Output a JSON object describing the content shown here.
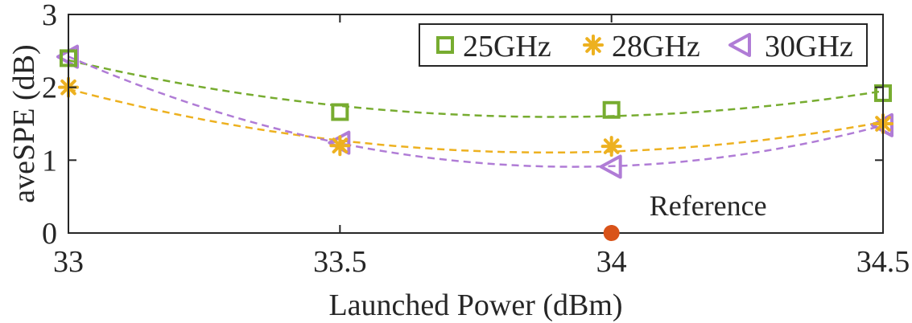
{
  "chart_data": {
    "type": "line",
    "title": "",
    "xlabel": "Launched Power (dBm)",
    "ylabel": "aveSPE (dB)",
    "xlim": [
      33,
      34.5
    ],
    "ylim": [
      0,
      3
    ],
    "xticks": [
      "33",
      "33.5",
      "34",
      "34.5"
    ],
    "yticks": [
      "0",
      "1",
      "2",
      "3"
    ],
    "x": [
      33,
      33.5,
      34,
      34.5
    ],
    "series": [
      {
        "name": "25GHz",
        "values": [
          2.4,
          1.66,
          1.69,
          1.92
        ],
        "color": "#77ac30",
        "marker": "square",
        "fit": "quadratic-dashed"
      },
      {
        "name": "28GHz",
        "values": [
          2.0,
          1.2,
          1.19,
          1.5
        ],
        "color": "#edb120",
        "marker": "asterisk",
        "fit": "quadratic-dashed"
      },
      {
        "name": "30GHz",
        "values": [
          2.42,
          1.24,
          0.91,
          1.48
        ],
        "color": "#b07cd6",
        "marker": "triangle-left",
        "fit": "quadratic-dashed"
      }
    ],
    "reference": {
      "label": "Reference",
      "x": 34,
      "y": 0,
      "color": "#d95319"
    },
    "legend": {
      "placement": "top-right",
      "orientation": "horizontal"
    },
    "grid": false
  }
}
